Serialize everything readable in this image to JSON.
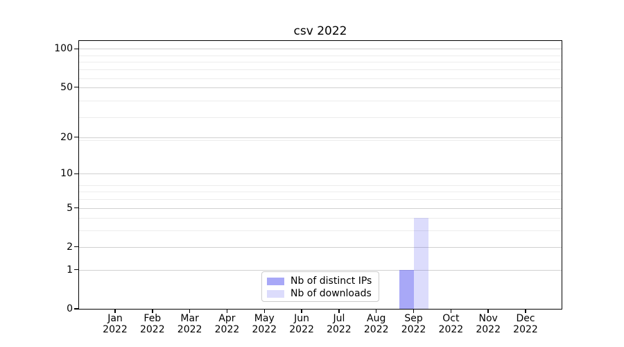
{
  "chart_data": {
    "type": "bar",
    "title": "csv 2022",
    "categories": [
      "Jan",
      "Feb",
      "Mar",
      "Apr",
      "May",
      "Jun",
      "Jul",
      "Aug",
      "Sep",
      "Oct",
      "Nov",
      "Dec"
    ],
    "category_year_line": "2022",
    "series": [
      {
        "name": "Nb of distinct IPs",
        "color": "rgba(82,82,240,0.50)",
        "color_on_white_hex": "#a8a8f7",
        "values": [
          0,
          0,
          0,
          0,
          0,
          0,
          0,
          0,
          1,
          0,
          0,
          0
        ]
      },
      {
        "name": "Nb of downloads",
        "color": "rgba(82,82,240,0.20)",
        "color_on_white_hex": "#dcdcfc",
        "values": [
          0,
          0,
          0,
          0,
          0,
          0,
          0,
          0,
          4,
          0,
          0,
          0
        ]
      }
    ],
    "y_axis": {
      "scale": "log1p",
      "major_ticks": [
        0,
        1,
        2,
        5,
        10,
        20,
        50,
        100
      ],
      "minor_gridline_values": [
        3,
        4,
        6,
        7,
        8,
        19,
        29,
        39,
        59,
        69,
        79,
        89
      ],
      "ylim": [
        0,
        115
      ]
    },
    "grid": {
      "on": true,
      "major_color": "#d0d0d0",
      "minor_color": "#ececec"
    },
    "legend": {
      "location": "lower center",
      "border_color": "#cccccc"
    },
    "axis_color": "#000000",
    "text_color": "#000000",
    "background_color": "#ffffff"
  }
}
